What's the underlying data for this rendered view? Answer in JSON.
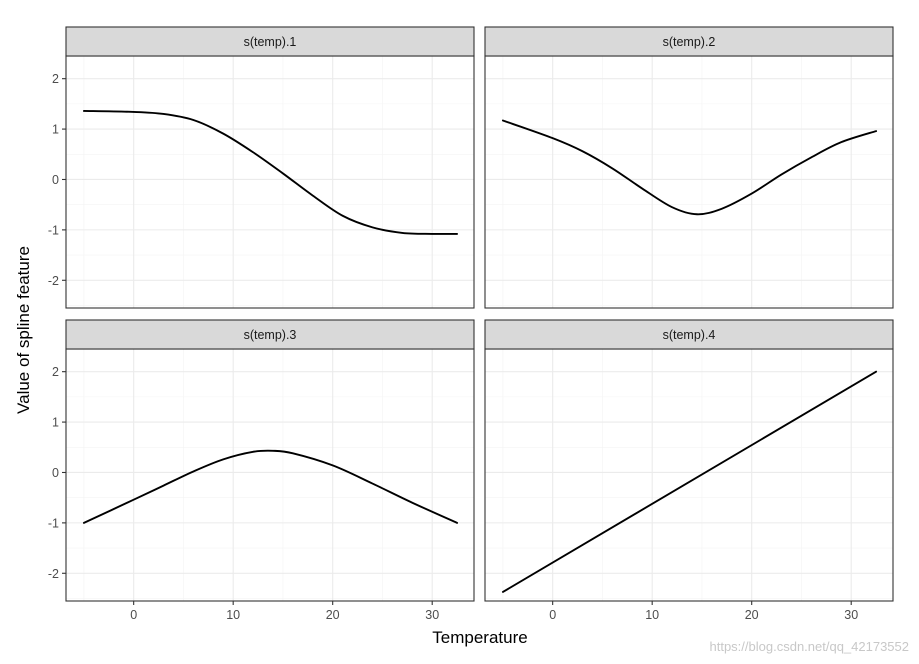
{
  "chart_data": {
    "type": "line",
    "facet_layout": "2x2",
    "xlabel": "Temperature",
    "ylabel": "Value of spline feature",
    "xlim": [
      -6.8,
      34.2
    ],
    "ylim": [
      -2.55,
      2.45
    ],
    "x_ticks": [
      0,
      10,
      20,
      30
    ],
    "x_tick_labels": [
      "0",
      "10",
      "20",
      "30"
    ],
    "y_ticks": [
      -2,
      -1,
      0,
      1,
      2
    ],
    "y_tick_labels": [
      "-2",
      "-1",
      "0",
      "1",
      "2"
    ],
    "grid": true,
    "legend": "none",
    "line_color": "#000000",
    "strip_color": "#d9d9d9",
    "panels": [
      {
        "name": "s(temp).1",
        "x": [
          -5,
          0,
          3,
          6,
          9,
          12,
          15,
          18,
          21,
          24,
          27,
          30,
          32.5
        ],
        "y": [
          1.36,
          1.34,
          1.3,
          1.18,
          0.91,
          0.54,
          0.12,
          -0.32,
          -0.72,
          -0.95,
          -1.06,
          -1.08,
          -1.08
        ]
      },
      {
        "name": "s(temp).2",
        "x": [
          -5,
          0,
          3,
          6,
          9,
          12,
          14.5,
          17,
          20,
          23,
          26,
          29,
          32.5
        ],
        "y": [
          1.17,
          0.82,
          0.56,
          0.22,
          -0.18,
          -0.55,
          -0.69,
          -0.58,
          -0.28,
          0.1,
          0.44,
          0.74,
          0.96
        ]
      },
      {
        "name": "s(temp).3",
        "x": [
          -5,
          0,
          3,
          6,
          9,
          12,
          14,
          16,
          20,
          24,
          28,
          32.5
        ],
        "y": [
          -1.0,
          -0.54,
          -0.26,
          0.02,
          0.26,
          0.41,
          0.43,
          0.38,
          0.14,
          -0.22,
          -0.6,
          -1.0
        ]
      },
      {
        "name": "s(temp).4",
        "x": [
          -5,
          32.5
        ],
        "y": [
          -2.37,
          2.0
        ]
      }
    ]
  },
  "watermark": "https://blog.csdn.net/qq_42173552"
}
